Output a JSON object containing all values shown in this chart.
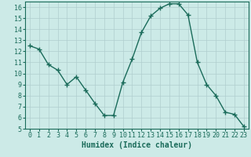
{
  "x": [
    0,
    1,
    2,
    3,
    4,
    5,
    6,
    7,
    8,
    9,
    10,
    11,
    12,
    13,
    14,
    15,
    16,
    17,
    18,
    19,
    20,
    21,
    22,
    23
  ],
  "y": [
    12.5,
    12.2,
    10.8,
    10.3,
    9.0,
    9.7,
    8.5,
    7.3,
    6.2,
    6.2,
    9.2,
    11.3,
    13.7,
    15.2,
    15.9,
    16.3,
    16.3,
    15.3,
    11.0,
    9.0,
    8.0,
    6.5,
    6.3,
    5.2
  ],
  "line_color": "#1a6b5a",
  "marker": "+",
  "markersize": 4,
  "linewidth": 1.0,
  "bg_color": "#cceae7",
  "grid_color": "#b0cece",
  "xlabel": "Humidex (Indice chaleur)",
  "xlabel_fontsize": 7,
  "tick_fontsize": 6,
  "ylim": [
    5,
    16.5
  ],
  "xlim": [
    -0.5,
    23.5
  ],
  "yticks": [
    5,
    6,
    7,
    8,
    9,
    10,
    11,
    12,
    13,
    14,
    15,
    16
  ],
  "xticks": [
    0,
    1,
    2,
    3,
    4,
    5,
    6,
    7,
    8,
    9,
    10,
    11,
    12,
    13,
    14,
    15,
    16,
    17,
    18,
    19,
    20,
    21,
    22,
    23
  ]
}
